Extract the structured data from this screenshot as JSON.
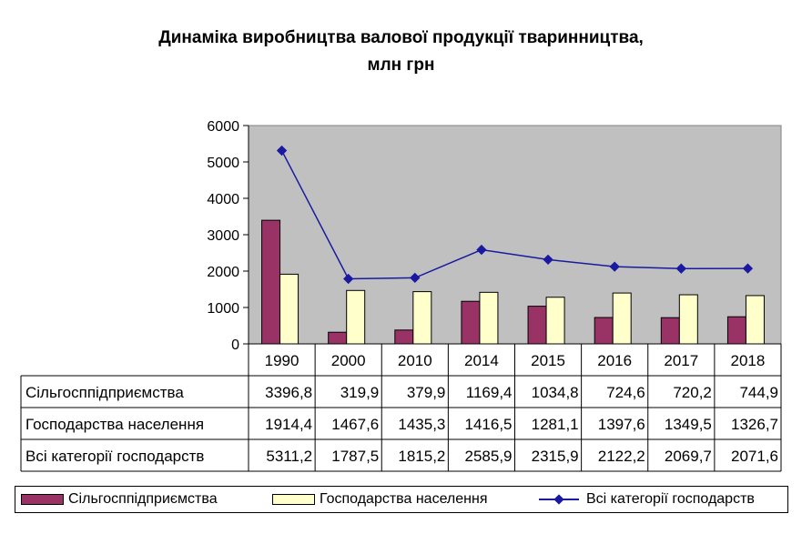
{
  "title_line1": "Динаміка виробництва валової продукції тваринництва,",
  "title_line2": "млн грн",
  "chart_data": {
    "type": "bar",
    "title": "Динаміка виробництва валової продукції тваринництва, млн грн",
    "categories": [
      "1990",
      "2000",
      "2010",
      "2014",
      "2015",
      "2016",
      "2017",
      "2018"
    ],
    "ylim": [
      0,
      6000
    ],
    "yticks": [
      0,
      1000,
      2000,
      3000,
      4000,
      5000,
      6000
    ],
    "grid": false,
    "legend": "bottom",
    "data_table": true,
    "series": [
      {
        "name": "Сільгосппідприємства",
        "type": "bar",
        "color": "#993366",
        "values": [
          3396.8,
          319.9,
          379.9,
          1169.4,
          1034.8,
          724.6,
          720.2,
          744.9
        ],
        "labels": [
          "3396,8",
          "319,9",
          "379,9",
          "1169,4",
          "1034,8",
          "724,6",
          "720,2",
          "744,9"
        ]
      },
      {
        "name": "Господарства населення",
        "type": "bar",
        "color": "#ffffcc",
        "values": [
          1914.4,
          1467.6,
          1435.3,
          1416.5,
          1281.1,
          1397.6,
          1349.5,
          1326.7
        ],
        "labels": [
          "1914,4",
          "1467,6",
          "1435,3",
          "1416,5",
          "1281,1",
          "1397,6",
          "1349,5",
          "1326,7"
        ]
      },
      {
        "name": "Всі категорії господарств",
        "type": "line",
        "color": "#1a1aa0",
        "marker": "diamond",
        "values": [
          5311.2,
          1787.5,
          1815.2,
          2585.9,
          2315.9,
          2122.2,
          2069.7,
          2071.6
        ],
        "labels": [
          "5311,2",
          "1787,5",
          "1815,2",
          "2585,9",
          "2315,9",
          "2122,2",
          "2069,7",
          "2071,6"
        ]
      }
    ],
    "plot_background": "#c0c0c0"
  }
}
